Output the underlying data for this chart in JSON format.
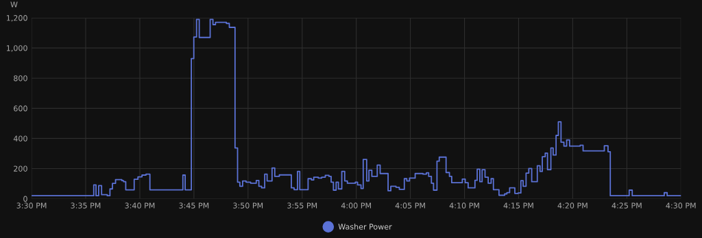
{
  "chart_data": {
    "type": "step",
    "ylabel": "W",
    "x": [
      15.5,
      15.5957,
      15.5992,
      15.6033,
      15.6078,
      15.6165,
      15.6207,
      15.6245,
      15.6293,
      15.639,
      15.6417,
      15.645,
      15.658,
      15.6638,
      15.67,
      15.6762,
      15.6822,
      15.733,
      15.7365,
      15.746,
      15.7498,
      15.754,
      15.7582,
      15.775,
      15.7793,
      15.7832,
      15.8,
      15.8045,
      15.8133,
      15.8172,
      15.8207,
      15.825,
      15.8303,
      15.8373,
      15.846,
      15.85,
      15.8542,
      15.859,
      15.8627,
      15.8703,
      15.8745,
      15.8815,
      15.9,
      15.9043,
      15.9095,
      15.913,
      15.9258,
      15.931,
      15.9345,
      15.9415,
      15.9467,
      15.9523,
      15.958,
      15.9613,
      15.9648,
      15.969,
      15.9725,
      15.9777,
      15.9822,
      15.9863,
      15.9985,
      16.002,
      16.0073,
      16.0107,
      16.016,
      16.0195,
      16.024,
      16.0323,
      16.0368,
      16.049,
      16.0532,
      16.0612,
      16.0663,
      16.074,
      16.0778,
      16.082,
      16.0907,
      16.1028,
      16.108,
      16.1115,
      16.1157,
      16.119,
      16.1243,
      16.1278,
      16.1383,
      16.1435,
      16.147,
      16.1633,
      16.1678,
      16.1723,
      16.1828,
      16.1862,
      16.1903,
      16.1938,
      16.1983,
      16.2032,
      16.2077,
      16.2112,
      16.2198,
      16.2285,
      16.232,
      16.2362,
      16.2442,
      16.2493,
      16.2535,
      16.257,
      16.2615,
      16.2657,
      16.2702,
      16.2788,
      16.283,
      16.2865,
      16.291,
      16.2945,
      16.2997,
      16.3032,
      16.3077,
      16.3112,
      16.3153,
      16.3198,
      16.324,
      16.3285,
      16.3448,
      16.3493,
      16.382,
      16.3877,
      16.3912,
      16.4203,
      16.425,
      16.4743,
      16.4788,
      16.5
    ],
    "series": [
      {
        "name": "Washer Power",
        "color": "#5b72d6",
        "values": [
          20,
          92,
          20,
          87,
          27,
          20,
          65,
          102,
          127,
          120,
          113,
          59,
          129,
          145,
          157,
          163,
          59,
          157,
          59,
          930,
          1073,
          1190,
          1070,
          1190,
          1155,
          1170,
          1163,
          1137,
          337,
          110,
          83,
          118,
          110,
          103,
          121,
          83,
          72,
          163,
          118,
          204,
          148,
          158,
          72,
          60,
          181,
          60,
          133,
          125,
          143,
          137,
          143,
          155,
          148,
          110,
          57,
          110,
          65,
          181,
          118,
          103,
          110,
          92,
          68,
          261,
          118,
          189,
          148,
          223,
          167,
          53,
          83,
          76,
          62,
          133,
          118,
          137,
          167,
          163,
          172,
          148,
          103,
          57,
          249,
          276,
          174,
          148,
          106,
          130,
          106,
          72,
          122,
          196,
          113,
          193,
          143,
          103,
          133,
          60,
          23,
          32,
          41,
          72,
          35,
          38,
          120,
          83,
          170,
          201,
          113,
          219,
          181,
          279,
          303,
          193,
          337,
          290,
          420,
          510,
          375,
          349,
          390,
          349,
          355,
          317,
          351,
          312,
          20,
          57,
          20,
          40,
          20,
          20
        ]
      }
    ],
    "xlim": [
      15.5,
      16.5
    ],
    "xticks": [
      {
        "value": 15.5,
        "label": "3:30 PM"
      },
      {
        "value": 15.5833,
        "label": "3:35 PM"
      },
      {
        "value": 15.6667,
        "label": "3:40 PM"
      },
      {
        "value": 15.75,
        "label": "3:45 PM"
      },
      {
        "value": 15.8333,
        "label": "3:50 PM"
      },
      {
        "value": 15.9167,
        "label": "3:55 PM"
      },
      {
        "value": 16.0,
        "label": "4:00 PM"
      },
      {
        "value": 16.0833,
        "label": "4:05 PM"
      },
      {
        "value": 16.1667,
        "label": "4:10 PM"
      },
      {
        "value": 16.25,
        "label": "4:15 PM"
      },
      {
        "value": 16.3333,
        "label": "4:20 PM"
      },
      {
        "value": 16.4167,
        "label": "4:25 PM"
      },
      {
        "value": 16.5,
        "label": "4:30 PM"
      }
    ],
    "ylim": [
      0,
      1200
    ],
    "yticks": [
      0,
      200,
      400,
      600,
      800,
      {
        "value": 1000,
        "label": "1,000"
      },
      {
        "value": 1200,
        "label": "1,200"
      }
    ],
    "grid": true,
    "legend": "bottom"
  }
}
